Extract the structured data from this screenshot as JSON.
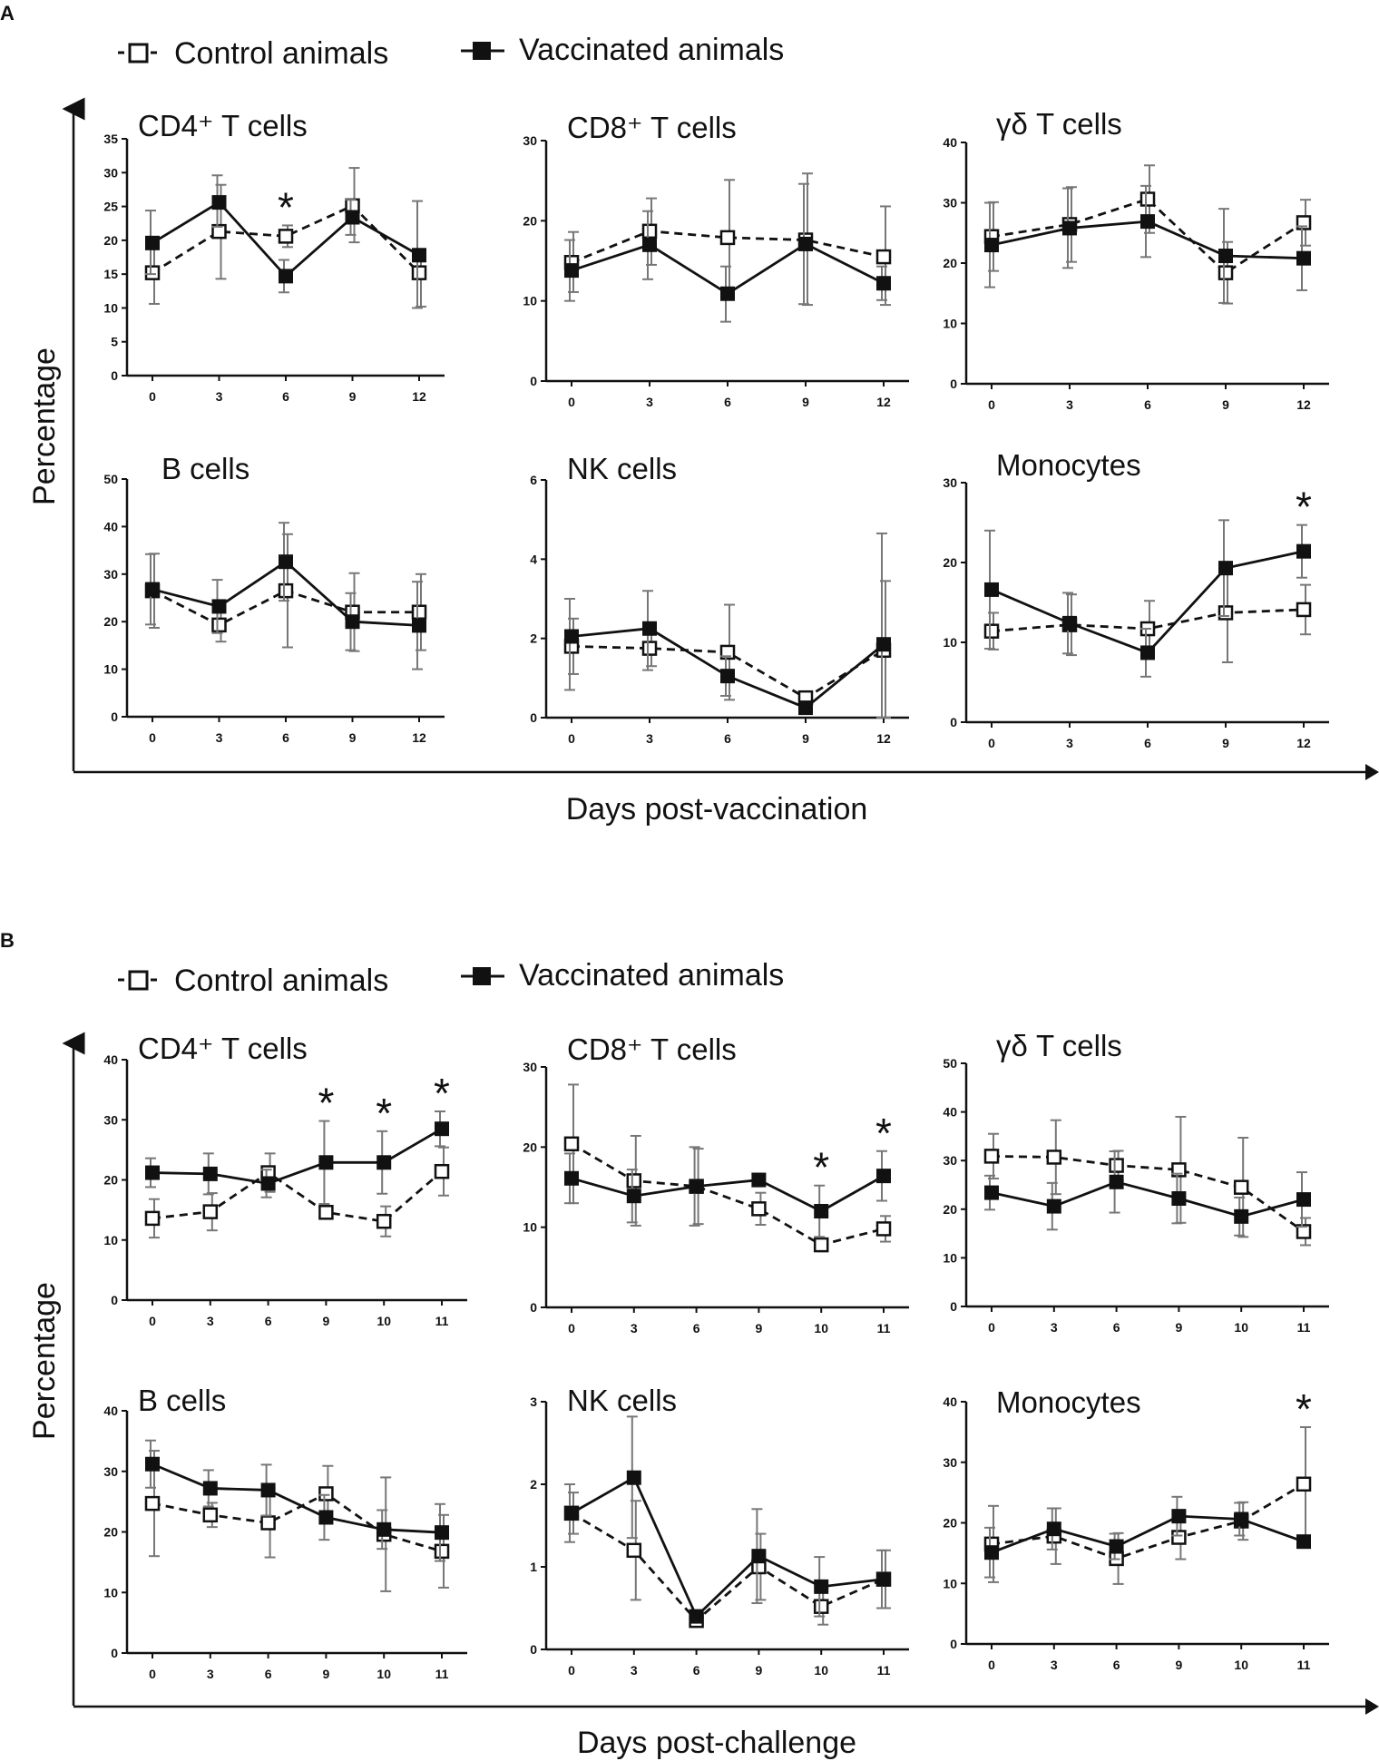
{
  "figure": {
    "sections": [
      {
        "letter": "A",
        "legend": {
          "control": "Control animals",
          "vaccinated": "Vaccinated animals"
        },
        "ylabel": "Percentage",
        "xlabel": "Days post-vaccination"
      },
      {
        "letter": "B",
        "legend": {
          "control": "Control animals",
          "vaccinated": "Vaccinated animals"
        },
        "ylabel": "Percentage",
        "xlabel": "Days post-challenge"
      }
    ]
  },
  "colors": {
    "line": "#111111",
    "error": "#777777",
    "marker_fill": "#111111",
    "open_fill": "#ffffff"
  },
  "chart_data": [
    {
      "section": "A",
      "type": "line",
      "title": "CD4⁺ T cells",
      "categories": [
        "0",
        "3",
        "6",
        "9",
        "12"
      ],
      "ylim": [
        0,
        35
      ],
      "yticks": [
        "0",
        "5",
        "10",
        "15",
        "20",
        "25",
        "30",
        "35"
      ],
      "series": [
        {
          "name": "Control animals",
          "style": "dashed-open",
          "values": [
            15.2,
            21.3,
            20.6,
            25.1,
            15.2
          ],
          "err_low": [
            10.6,
            14.3,
            19.0,
            19.7,
            10.2
          ],
          "err_high": [
            19.6,
            28.2,
            22.2,
            30.7,
            17.1
          ]
        },
        {
          "name": "Vaccinated animals",
          "style": "solid-filled",
          "values": [
            19.6,
            25.6,
            14.7,
            23.4,
            17.8
          ],
          "err_low": [
            15.0,
            22.0,
            12.3,
            20.8,
            10.0
          ],
          "err_high": [
            24.4,
            29.6,
            17.1,
            26.0,
            25.8
          ]
        }
      ],
      "annotations": [
        {
          "x": "6",
          "text": "*"
        }
      ]
    },
    {
      "section": "A",
      "type": "line",
      "title": "CD8⁺ T cells",
      "categories": [
        "0",
        "3",
        "6",
        "9",
        "12"
      ],
      "ylim": [
        0,
        30
      ],
      "yticks": [
        "0",
        "10",
        "20",
        "30"
      ],
      "series": [
        {
          "name": "Control animals",
          "style": "dashed-open",
          "values": [
            14.8,
            18.7,
            17.9,
            17.6,
            15.5
          ],
          "err_low": [
            11.1,
            14.5,
            10.7,
            9.5,
            9.5
          ],
          "err_high": [
            18.6,
            22.8,
            25.1,
            25.9,
            21.8
          ]
        },
        {
          "name": "Vaccinated animals",
          "style": "solid-filled",
          "values": [
            13.8,
            17.0,
            10.9,
            17.1,
            12.2
          ],
          "err_low": [
            10.0,
            12.7,
            7.4,
            9.6,
            10.1
          ],
          "err_high": [
            17.6,
            21.2,
            14.3,
            24.6,
            14.3
          ]
        }
      ],
      "annotations": []
    },
    {
      "section": "A",
      "type": "line",
      "title": "γδ T cells",
      "categories": [
        "0",
        "3",
        "6",
        "9",
        "12"
      ],
      "ylim": [
        0,
        40
      ],
      "yticks": [
        "0",
        "10",
        "20",
        "30",
        "40"
      ],
      "series": [
        {
          "name": "Control animals",
          "style": "dashed-open",
          "values": [
            24.4,
            26.4,
            30.6,
            18.4,
            26.7
          ],
          "err_low": [
            18.7,
            20.2,
            25.0,
            13.3,
            22.9
          ],
          "err_high": [
            30.1,
            32.6,
            36.2,
            23.5,
            30.5
          ]
        },
        {
          "name": "Vaccinated animals",
          "style": "solid-filled",
          "values": [
            23.0,
            25.8,
            26.9,
            21.2,
            20.8
          ],
          "err_low": [
            16.0,
            19.2,
            21.0,
            13.4,
            15.5
          ],
          "err_high": [
            30.0,
            32.4,
            32.8,
            29.0,
            26.1
          ]
        }
      ],
      "annotations": []
    },
    {
      "section": "A",
      "type": "line",
      "title": "B cells",
      "categories": [
        "0",
        "3",
        "6",
        "9",
        "12"
      ],
      "ylim": [
        0,
        50
      ],
      "yticks": [
        "0",
        "10",
        "20",
        "30",
        "40",
        "50"
      ],
      "series": [
        {
          "name": "Control animals",
          "style": "dashed-open",
          "values": [
            26.5,
            19.3,
            26.5,
            22.0,
            22.0
          ],
          "err_low": [
            18.7,
            15.8,
            14.6,
            13.8,
            14.0
          ],
          "err_high": [
            34.3,
            22.8,
            38.4,
            30.2,
            30.0
          ]
        },
        {
          "name": "Vaccinated animals",
          "style": "solid-filled",
          "values": [
            26.8,
            23.2,
            32.6,
            20.0,
            19.2
          ],
          "err_low": [
            19.4,
            17.6,
            24.4,
            14.0,
            10.0
          ],
          "err_high": [
            34.2,
            28.8,
            40.8,
            26.0,
            28.4
          ]
        }
      ],
      "annotations": []
    },
    {
      "section": "A",
      "type": "line",
      "title": "NK cells",
      "categories": [
        "0",
        "3",
        "6",
        "9",
        "12"
      ],
      "ylim": [
        0,
        6
      ],
      "yticks": [
        "0",
        "2",
        "4",
        "6"
      ],
      "series": [
        {
          "name": "Control animals",
          "style": "dashed-open",
          "values": [
            1.8,
            1.75,
            1.65,
            0.5,
            1.7
          ],
          "err_low": [
            1.1,
            1.3,
            0.45,
            0.35,
            0.0
          ],
          "err_high": [
            2.5,
            2.2,
            2.85,
            0.65,
            3.45
          ]
        },
        {
          "name": "Vaccinated animals",
          "style": "solid-filled",
          "values": [
            2.05,
            2.25,
            1.05,
            0.25,
            1.85
          ],
          "err_low": [
            0.7,
            1.2,
            0.55,
            0.15,
            0.0
          ],
          "err_high": [
            3.0,
            3.2,
            1.55,
            0.35,
            4.65
          ]
        }
      ],
      "annotations": []
    },
    {
      "section": "A",
      "type": "line",
      "title": "Monocytes",
      "categories": [
        "0",
        "3",
        "6",
        "9",
        "12"
      ],
      "ylim": [
        0,
        30
      ],
      "yticks": [
        "0",
        "10",
        "20",
        "30"
      ],
      "series": [
        {
          "name": "Control animals",
          "style": "dashed-open",
          "values": [
            11.4,
            12.2,
            11.7,
            13.7,
            14.1
          ],
          "err_low": [
            9.1,
            8.4,
            8.3,
            7.5,
            11.0
          ],
          "err_high": [
            13.7,
            16.0,
            15.2,
            19.9,
            17.2
          ]
        },
        {
          "name": "Vaccinated animals",
          "style": "solid-filled",
          "values": [
            16.6,
            12.4,
            8.7,
            19.3,
            21.4
          ],
          "err_low": [
            9.2,
            8.6,
            5.7,
            13.3,
            18.1
          ],
          "err_high": [
            24.0,
            16.2,
            11.7,
            25.3,
            24.7
          ]
        }
      ],
      "annotations": [
        {
          "x": "12",
          "text": "*"
        }
      ]
    },
    {
      "section": "B",
      "type": "line",
      "title": "CD4⁺ T cells",
      "categories": [
        "0",
        "3",
        "6",
        "9",
        "10",
        "11"
      ],
      "ylim": [
        0,
        40
      ],
      "yticks": [
        "0",
        "10",
        "20",
        "30",
        "40"
      ],
      "series": [
        {
          "name": "Control animals",
          "style": "dashed-open",
          "values": [
            13.6,
            14.7,
            21.2,
            14.6,
            13.1,
            21.4
          ],
          "err_low": [
            10.4,
            11.6,
            18.0,
            13.6,
            10.6,
            17.4
          ],
          "err_high": [
            16.8,
            17.8,
            24.4,
            15.6,
            15.6,
            25.4
          ]
        },
        {
          "name": "Vaccinated animals",
          "style": "solid-filled",
          "values": [
            21.2,
            21.0,
            19.4,
            22.9,
            22.9,
            28.5
          ],
          "err_low": [
            18.8,
            17.6,
            17.1,
            16.0,
            17.7,
            25.6
          ],
          "err_high": [
            23.6,
            24.4,
            21.7,
            29.8,
            28.1,
            31.4
          ]
        }
      ],
      "annotations": [
        {
          "x": "9",
          "text": "*"
        },
        {
          "x": "10",
          "text": "*"
        },
        {
          "x": "11",
          "text": "*"
        }
      ]
    },
    {
      "section": "B",
      "type": "line",
      "title": "CD8⁺ T cells",
      "categories": [
        "0",
        "3",
        "6",
        "9",
        "10",
        "11"
      ],
      "ylim": [
        0,
        30
      ],
      "yticks": [
        "0",
        "10",
        "20",
        "30"
      ],
      "series": [
        {
          "name": "Control animals",
          "style": "dashed-open",
          "values": [
            20.4,
            15.8,
            15.1,
            12.3,
            7.8,
            9.8
          ],
          "err_low": [
            13.0,
            10.2,
            10.4,
            10.3,
            7.0,
            8.2
          ],
          "err_high": [
            27.8,
            21.4,
            19.8,
            14.3,
            8.6,
            11.4
          ]
        },
        {
          "name": "Vaccinated animals",
          "style": "solid-filled",
          "values": [
            16.1,
            13.9,
            15.1,
            15.9,
            12.0,
            16.4
          ],
          "err_low": [
            13.0,
            10.6,
            10.2,
            15.1,
            8.8,
            13.3
          ],
          "err_high": [
            19.2,
            17.2,
            20.0,
            16.7,
            15.2,
            19.5
          ]
        }
      ],
      "annotations": [
        {
          "x": "10",
          "text": "*"
        },
        {
          "x": "11",
          "text": "*"
        }
      ]
    },
    {
      "section": "B",
      "type": "line",
      "title": "γδ T cells",
      "categories": [
        "0",
        "3",
        "6",
        "9",
        "10",
        "11"
      ],
      "ylim": [
        0,
        50
      ],
      "yticks": [
        "0",
        "10",
        "20",
        "30",
        "40",
        "50"
      ],
      "series": [
        {
          "name": "Control animals",
          "style": "dashed-open",
          "values": [
            30.9,
            30.7,
            29.0,
            28.1,
            24.5,
            15.4
          ],
          "err_low": [
            26.3,
            23.1,
            26.0,
            17.2,
            14.3,
            12.6
          ],
          "err_high": [
            35.5,
            38.3,
            32.0,
            39.0,
            34.7,
            18.2
          ]
        },
        {
          "name": "Vaccinated animals",
          "style": "solid-filled",
          "values": [
            23.4,
            20.6,
            25.6,
            22.2,
            18.5,
            22.0
          ],
          "err_low": [
            19.9,
            15.8,
            19.3,
            17.1,
            14.6,
            16.4
          ],
          "err_high": [
            26.9,
            25.4,
            31.9,
            27.3,
            22.4,
            27.6
          ]
        }
      ],
      "annotations": []
    },
    {
      "section": "B",
      "type": "line",
      "title": "B cells",
      "categories": [
        "0",
        "3",
        "6",
        "9",
        "10",
        "11"
      ],
      "ylim": [
        0,
        40
      ],
      "yticks": [
        "0",
        "10",
        "20",
        "30",
        "40"
      ],
      "series": [
        {
          "name": "Control animals",
          "style": "dashed-open",
          "values": [
            24.7,
            22.8,
            21.5,
            26.3,
            19.6,
            16.8
          ],
          "err_low": [
            16.0,
            20.8,
            15.8,
            21.7,
            10.2,
            10.8
          ],
          "err_high": [
            33.4,
            24.8,
            27.2,
            30.9,
            29.0,
            22.8
          ]
        },
        {
          "name": "Vaccinated animals",
          "style": "solid-filled",
          "values": [
            31.2,
            27.2,
            26.9,
            22.4,
            20.4,
            19.9
          ],
          "err_low": [
            27.3,
            24.2,
            22.7,
            18.7,
            17.2,
            15.2
          ],
          "err_high": [
            35.1,
            30.2,
            31.1,
            26.1,
            23.6,
            24.6
          ]
        }
      ],
      "annotations": []
    },
    {
      "section": "B",
      "type": "line",
      "title": "NK cells",
      "categories": [
        "0",
        "3",
        "6",
        "9",
        "10",
        "11"
      ],
      "ylim": [
        0,
        3
      ],
      "yticks": [
        "0",
        "1",
        "2",
        "3"
      ],
      "series": [
        {
          "name": "Control animals",
          "style": "dashed-open",
          "values": [
            1.65,
            1.2,
            0.35,
            1.0,
            0.52,
            0.85
          ],
          "err_low": [
            1.4,
            0.6,
            0.3,
            0.6,
            0.3,
            0.5
          ],
          "err_high": [
            1.9,
            1.8,
            0.4,
            1.4,
            0.75,
            1.2
          ]
        },
        {
          "name": "Vaccinated animals",
          "style": "solid-filled",
          "values": [
            1.65,
            2.08,
            0.4,
            1.13,
            0.76,
            0.85
          ],
          "err_low": [
            1.3,
            1.35,
            0.35,
            0.56,
            0.4,
            0.5
          ],
          "err_high": [
            2.0,
            2.82,
            0.45,
            1.7,
            1.12,
            1.2
          ]
        }
      ],
      "annotations": []
    },
    {
      "section": "B",
      "type": "line",
      "title": "Monocytes",
      "categories": [
        "0",
        "3",
        "6",
        "9",
        "10",
        "11"
      ],
      "ylim": [
        0,
        40
      ],
      "yticks": [
        "0",
        "10",
        "20",
        "30",
        "40"
      ],
      "series": [
        {
          "name": "Control animals",
          "style": "dashed-open",
          "values": [
            16.5,
            17.8,
            14.1,
            17.6,
            20.3,
            26.4
          ],
          "err_low": [
            10.2,
            13.2,
            9.9,
            14.0,
            17.2,
            17.0
          ],
          "err_high": [
            22.8,
            22.4,
            18.3,
            21.2,
            23.4,
            35.8
          ]
        },
        {
          "name": "Vaccinated animals",
          "style": "solid-filled",
          "values": [
            15.1,
            19.0,
            16.1,
            21.1,
            20.6,
            16.9
          ],
          "err_low": [
            11.0,
            15.6,
            14.0,
            17.9,
            17.9,
            16.0
          ],
          "err_high": [
            19.2,
            22.4,
            18.2,
            24.3,
            23.3,
            17.8
          ]
        }
      ],
      "annotations": [
        {
          "x": "11",
          "text": "*"
        }
      ]
    }
  ]
}
